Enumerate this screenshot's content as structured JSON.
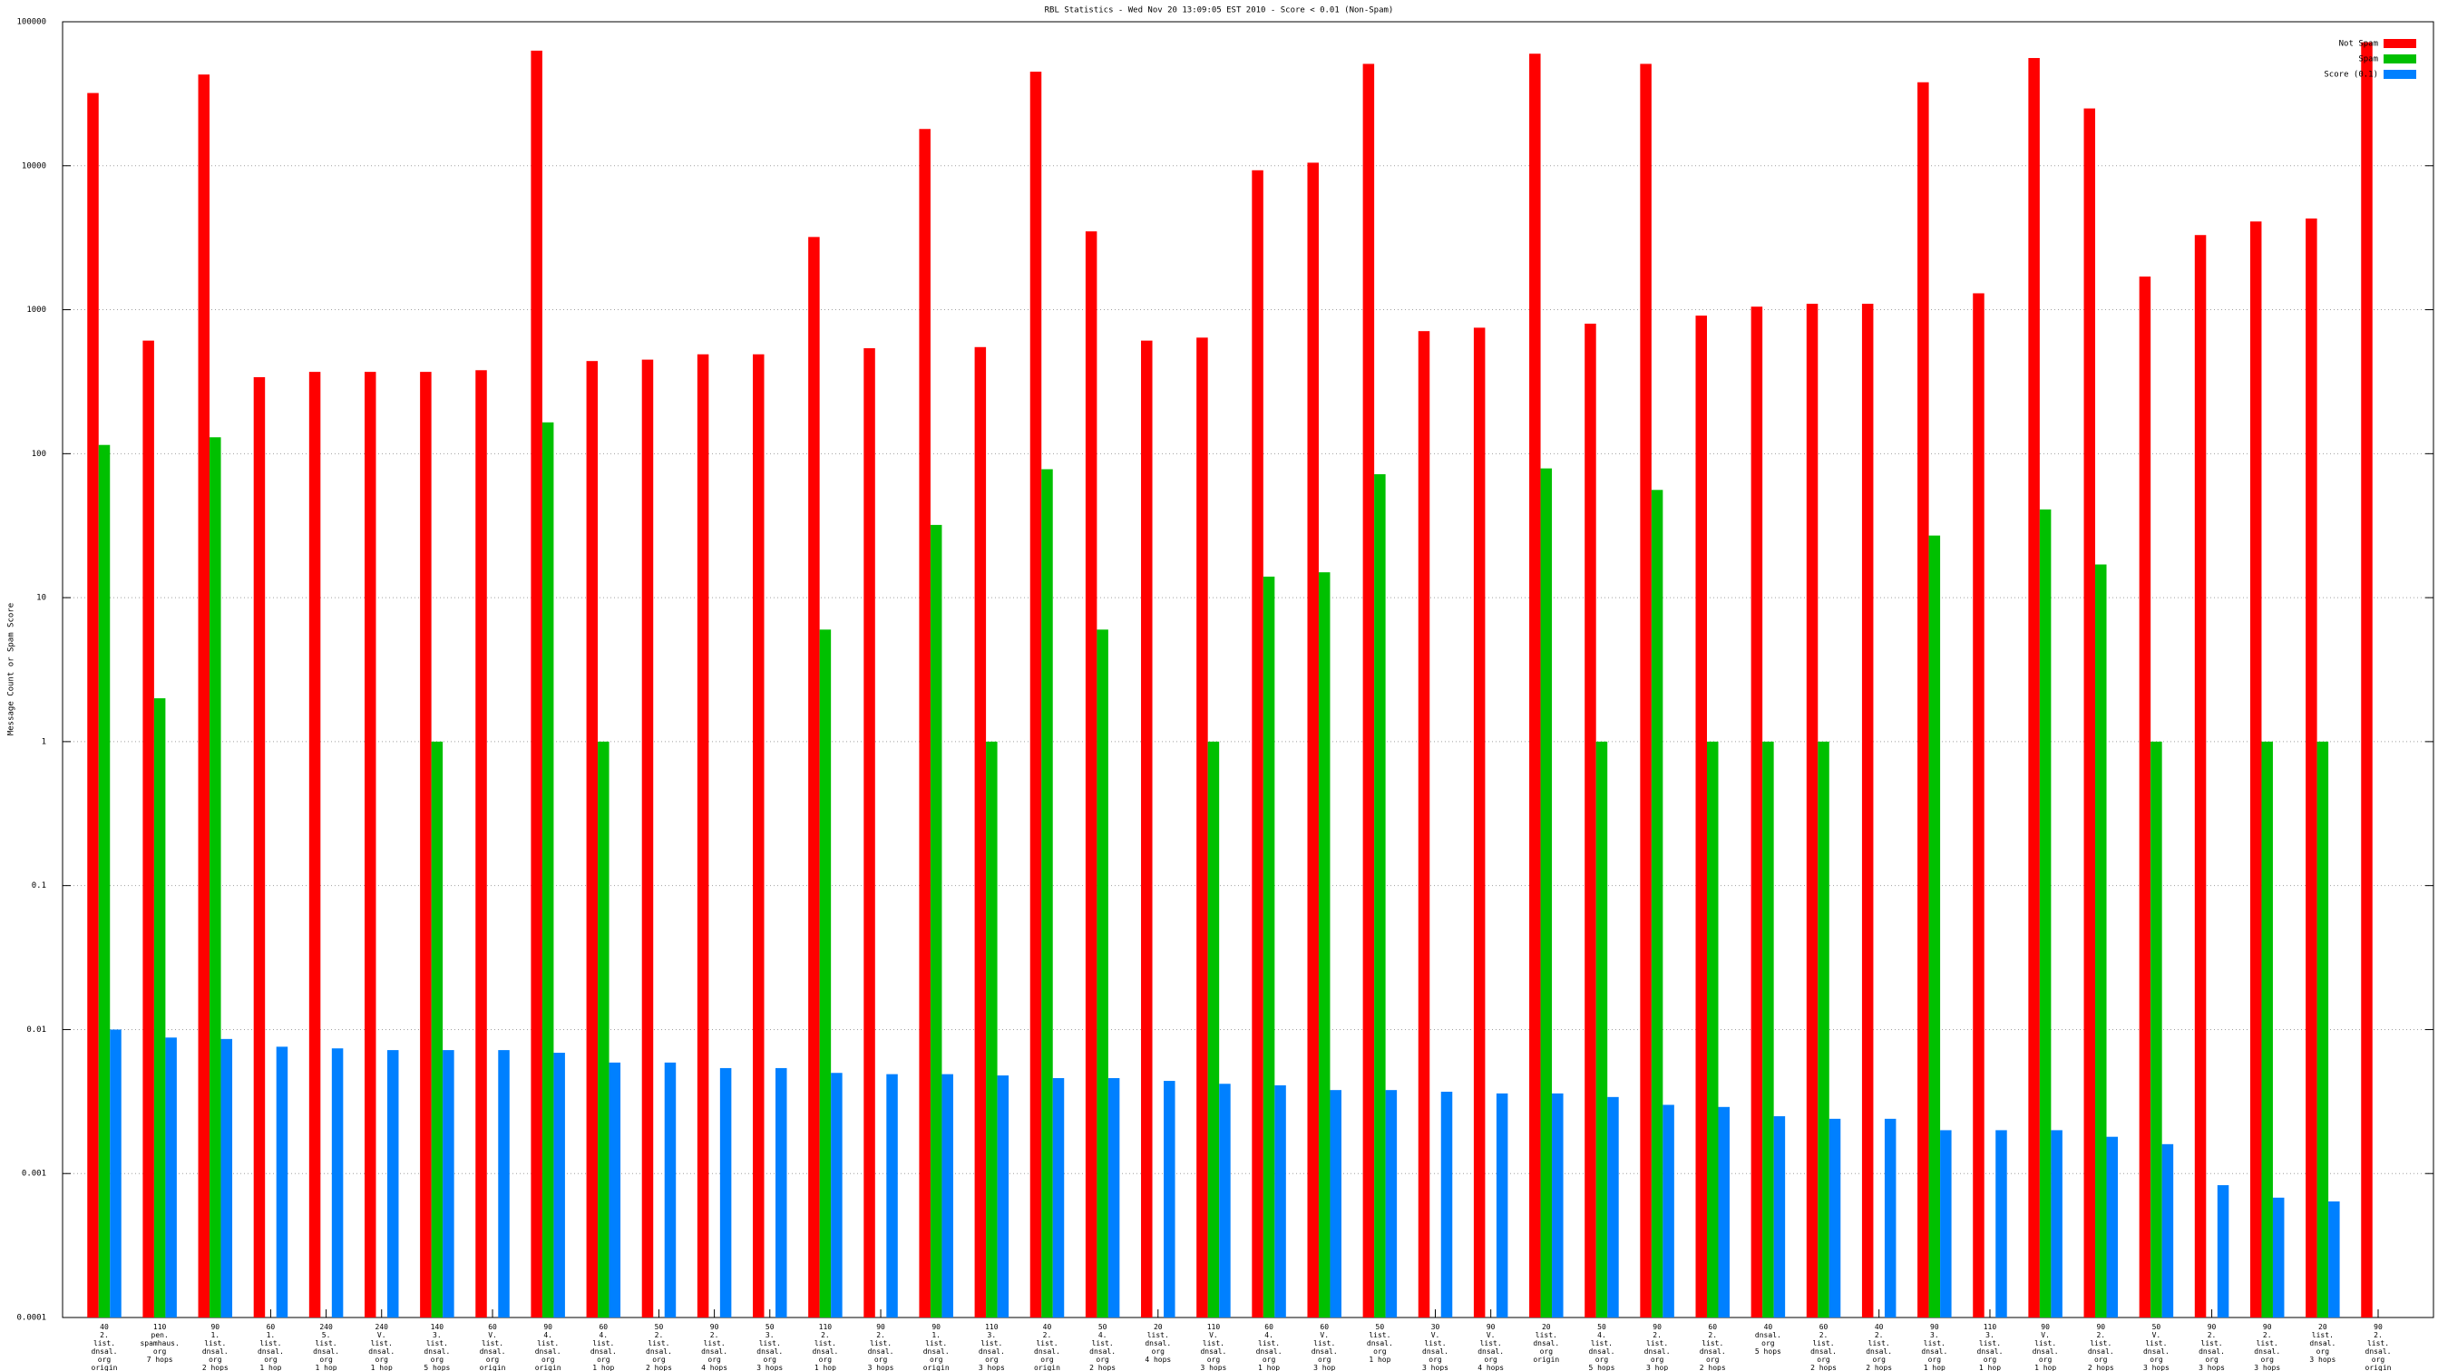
{
  "chart_data": {
    "type": "bar",
    "title": "RBL Statistics - Wed Nov 20 13:09:05 EST 2010 - Score < 0.01 (Non-Spam)",
    "y_label": "Message Count or Spam Score",
    "log_scale": true,
    "grid": true,
    "legend": "top-right",
    "ylim": [
      0.0001,
      100000
    ],
    "yticks": [
      0.0001,
      0.001,
      0.01,
      0.1,
      1,
      10,
      100,
      1000,
      10000,
      100000
    ],
    "categories": [
      [
        "40",
        "2.",
        "list.",
        "dnsal.",
        "org",
        "origin"
      ],
      [
        "110",
        "pen.",
        "spamhaus.",
        "org",
        "7 hops"
      ],
      [
        "90",
        "1.",
        "list.",
        "dnsal.",
        "org",
        "2 hops"
      ],
      [
        "60",
        "1.",
        "list.",
        "dnsal.",
        "org",
        "1 hop"
      ],
      [
        "240",
        "5.",
        "list.",
        "dnsal.",
        "org",
        "1 hop"
      ],
      [
        "240",
        "V.",
        "list.",
        "dnsal.",
        "org",
        "1 hop"
      ],
      [
        "140",
        "3.",
        "list.",
        "dnsal.",
        "org",
        "5 hops"
      ],
      [
        "60",
        "V.",
        "list.",
        "dnsal.",
        "org",
        "origin"
      ],
      [
        "90",
        "4.",
        "list.",
        "dnsal.",
        "org",
        "origin"
      ],
      [
        "60",
        "4.",
        "list.",
        "dnsal.",
        "org",
        "1 hop"
      ],
      [
        "50",
        "2.",
        "list.",
        "dnsal.",
        "org",
        "2 hops"
      ],
      [
        "90",
        "2.",
        "list.",
        "dnsal.",
        "org",
        "4 hops"
      ],
      [
        "50",
        "3.",
        "list.",
        "dnsal.",
        "org",
        "3 hops"
      ],
      [
        "110",
        "2.",
        "list.",
        "dnsal.",
        "org",
        "1 hop"
      ],
      [
        "90",
        "2.",
        "list.",
        "dnsal.",
        "org",
        "3 hops"
      ],
      [
        "90",
        "1.",
        "list.",
        "dnsal.",
        "org",
        "origin"
      ],
      [
        "110",
        "3.",
        "list.",
        "dnsal.",
        "org",
        "3 hops"
      ],
      [
        "40",
        "2.",
        "list.",
        "dnsal.",
        "org",
        "origin"
      ],
      [
        "50",
        "4.",
        "list.",
        "dnsal.",
        "org",
        "2 hops"
      ],
      [
        "20",
        "list.",
        "dnsal.",
        "org",
        "4 hops"
      ],
      [
        "110",
        "V.",
        "list.",
        "dnsal.",
        "org",
        "3 hops"
      ],
      [
        "60",
        "4.",
        "list.",
        "dnsal.",
        "org",
        "1 hop"
      ],
      [
        "60",
        "V.",
        "list.",
        "dnsal.",
        "org",
        "3 hop"
      ],
      [
        "50",
        "list.",
        "dnsal.",
        "org",
        "1 hop"
      ],
      [
        "30",
        "V.",
        "list.",
        "dnsal.",
        "org",
        "3 hops"
      ],
      [
        "90",
        "V.",
        "list.",
        "dnsal.",
        "org",
        "4 hops"
      ],
      [
        "20",
        "list.",
        "dnsal.",
        "org",
        "origin"
      ],
      [
        "50",
        "4.",
        "list.",
        "dnsal.",
        "org",
        "5 hops"
      ],
      [
        "90",
        "2.",
        "list.",
        "dnsal.",
        "org",
        "3 hop"
      ],
      [
        "60",
        "2.",
        "list.",
        "dnsal.",
        "org",
        "2 hops"
      ],
      [
        "40",
        "dnsal.",
        "org",
        "5 hops"
      ],
      [
        "60",
        "2.",
        "list.",
        "dnsal.",
        "org",
        "2 hops"
      ],
      [
        "40",
        "2.",
        "list.",
        "dnsal.",
        "org",
        "2 hops"
      ],
      [
        "90",
        "3.",
        "list.",
        "dnsal.",
        "org",
        "1 hop"
      ],
      [
        "110",
        "3.",
        "list.",
        "dnsal.",
        "org",
        "1 hop"
      ],
      [
        "90",
        "V.",
        "list.",
        "dnsal.",
        "org",
        "1 hop"
      ],
      [
        "90",
        "2.",
        "list.",
        "dnsal.",
        "org",
        "2 hops"
      ],
      [
        "50",
        "V.",
        "list.",
        "dnsal.",
        "org",
        "3 hops"
      ],
      [
        "90",
        "2.",
        "list.",
        "dnsal.",
        "org",
        "3 hops"
      ],
      [
        "90",
        "2.",
        "list.",
        "dnsal.",
        "org",
        "3 hops"
      ],
      [
        "20",
        "list.",
        "dnsal.",
        "org",
        "3 hops"
      ],
      [
        "90",
        "2.",
        "list.",
        "dnsal.",
        "org",
        "origin"
      ]
    ],
    "series": [
      {
        "name": "Not Spam",
        "color": "#ff0000",
        "values": [
          32000,
          610,
          43000,
          340,
          370,
          370,
          370,
          380,
          63000,
          440,
          450,
          490,
          490,
          3200,
          540,
          18000,
          550,
          45000,
          3500,
          610,
          640,
          9300,
          10500,
          51000,
          710,
          750,
          60000,
          800,
          51000,
          910,
          1050,
          1100,
          1100,
          38000,
          1300,
          56000,
          25000,
          1700,
          3300,
          4100,
          4300,
          72000
        ]
      },
      {
        "name": "Spam",
        "color": "#00c000",
        "values": [
          115,
          2,
          130,
          null,
          null,
          null,
          1,
          null,
          165,
          1,
          null,
          null,
          null,
          6,
          null,
          32,
          1,
          78,
          6,
          null,
          1,
          14,
          15,
          72,
          null,
          null,
          79,
          1,
          56,
          1,
          1,
          1,
          null,
          27,
          null,
          41,
          17,
          1,
          null,
          1,
          1,
          null
        ]
      },
      {
        "name": "Score (0.1)",
        "color": "#0080ff",
        "values": [
          0.01,
          0.0088,
          0.0086,
          0.0076,
          0.0074,
          0.0072,
          0.0072,
          0.0072,
          0.0069,
          0.0059,
          0.0059,
          0.0054,
          0.0054,
          0.005,
          0.0049,
          0.0049,
          0.0048,
          0.0046,
          0.0046,
          0.0044,
          0.0042,
          0.0041,
          0.0038,
          0.0038,
          0.0037,
          0.0036,
          0.0036,
          0.0034,
          0.003,
          0.0029,
          0.0025,
          0.0024,
          0.0024,
          0.002,
          0.002,
          0.002,
          0.0018,
          0.0016,
          0.00083,
          0.00068,
          0.00064,
          null
        ]
      }
    ]
  }
}
